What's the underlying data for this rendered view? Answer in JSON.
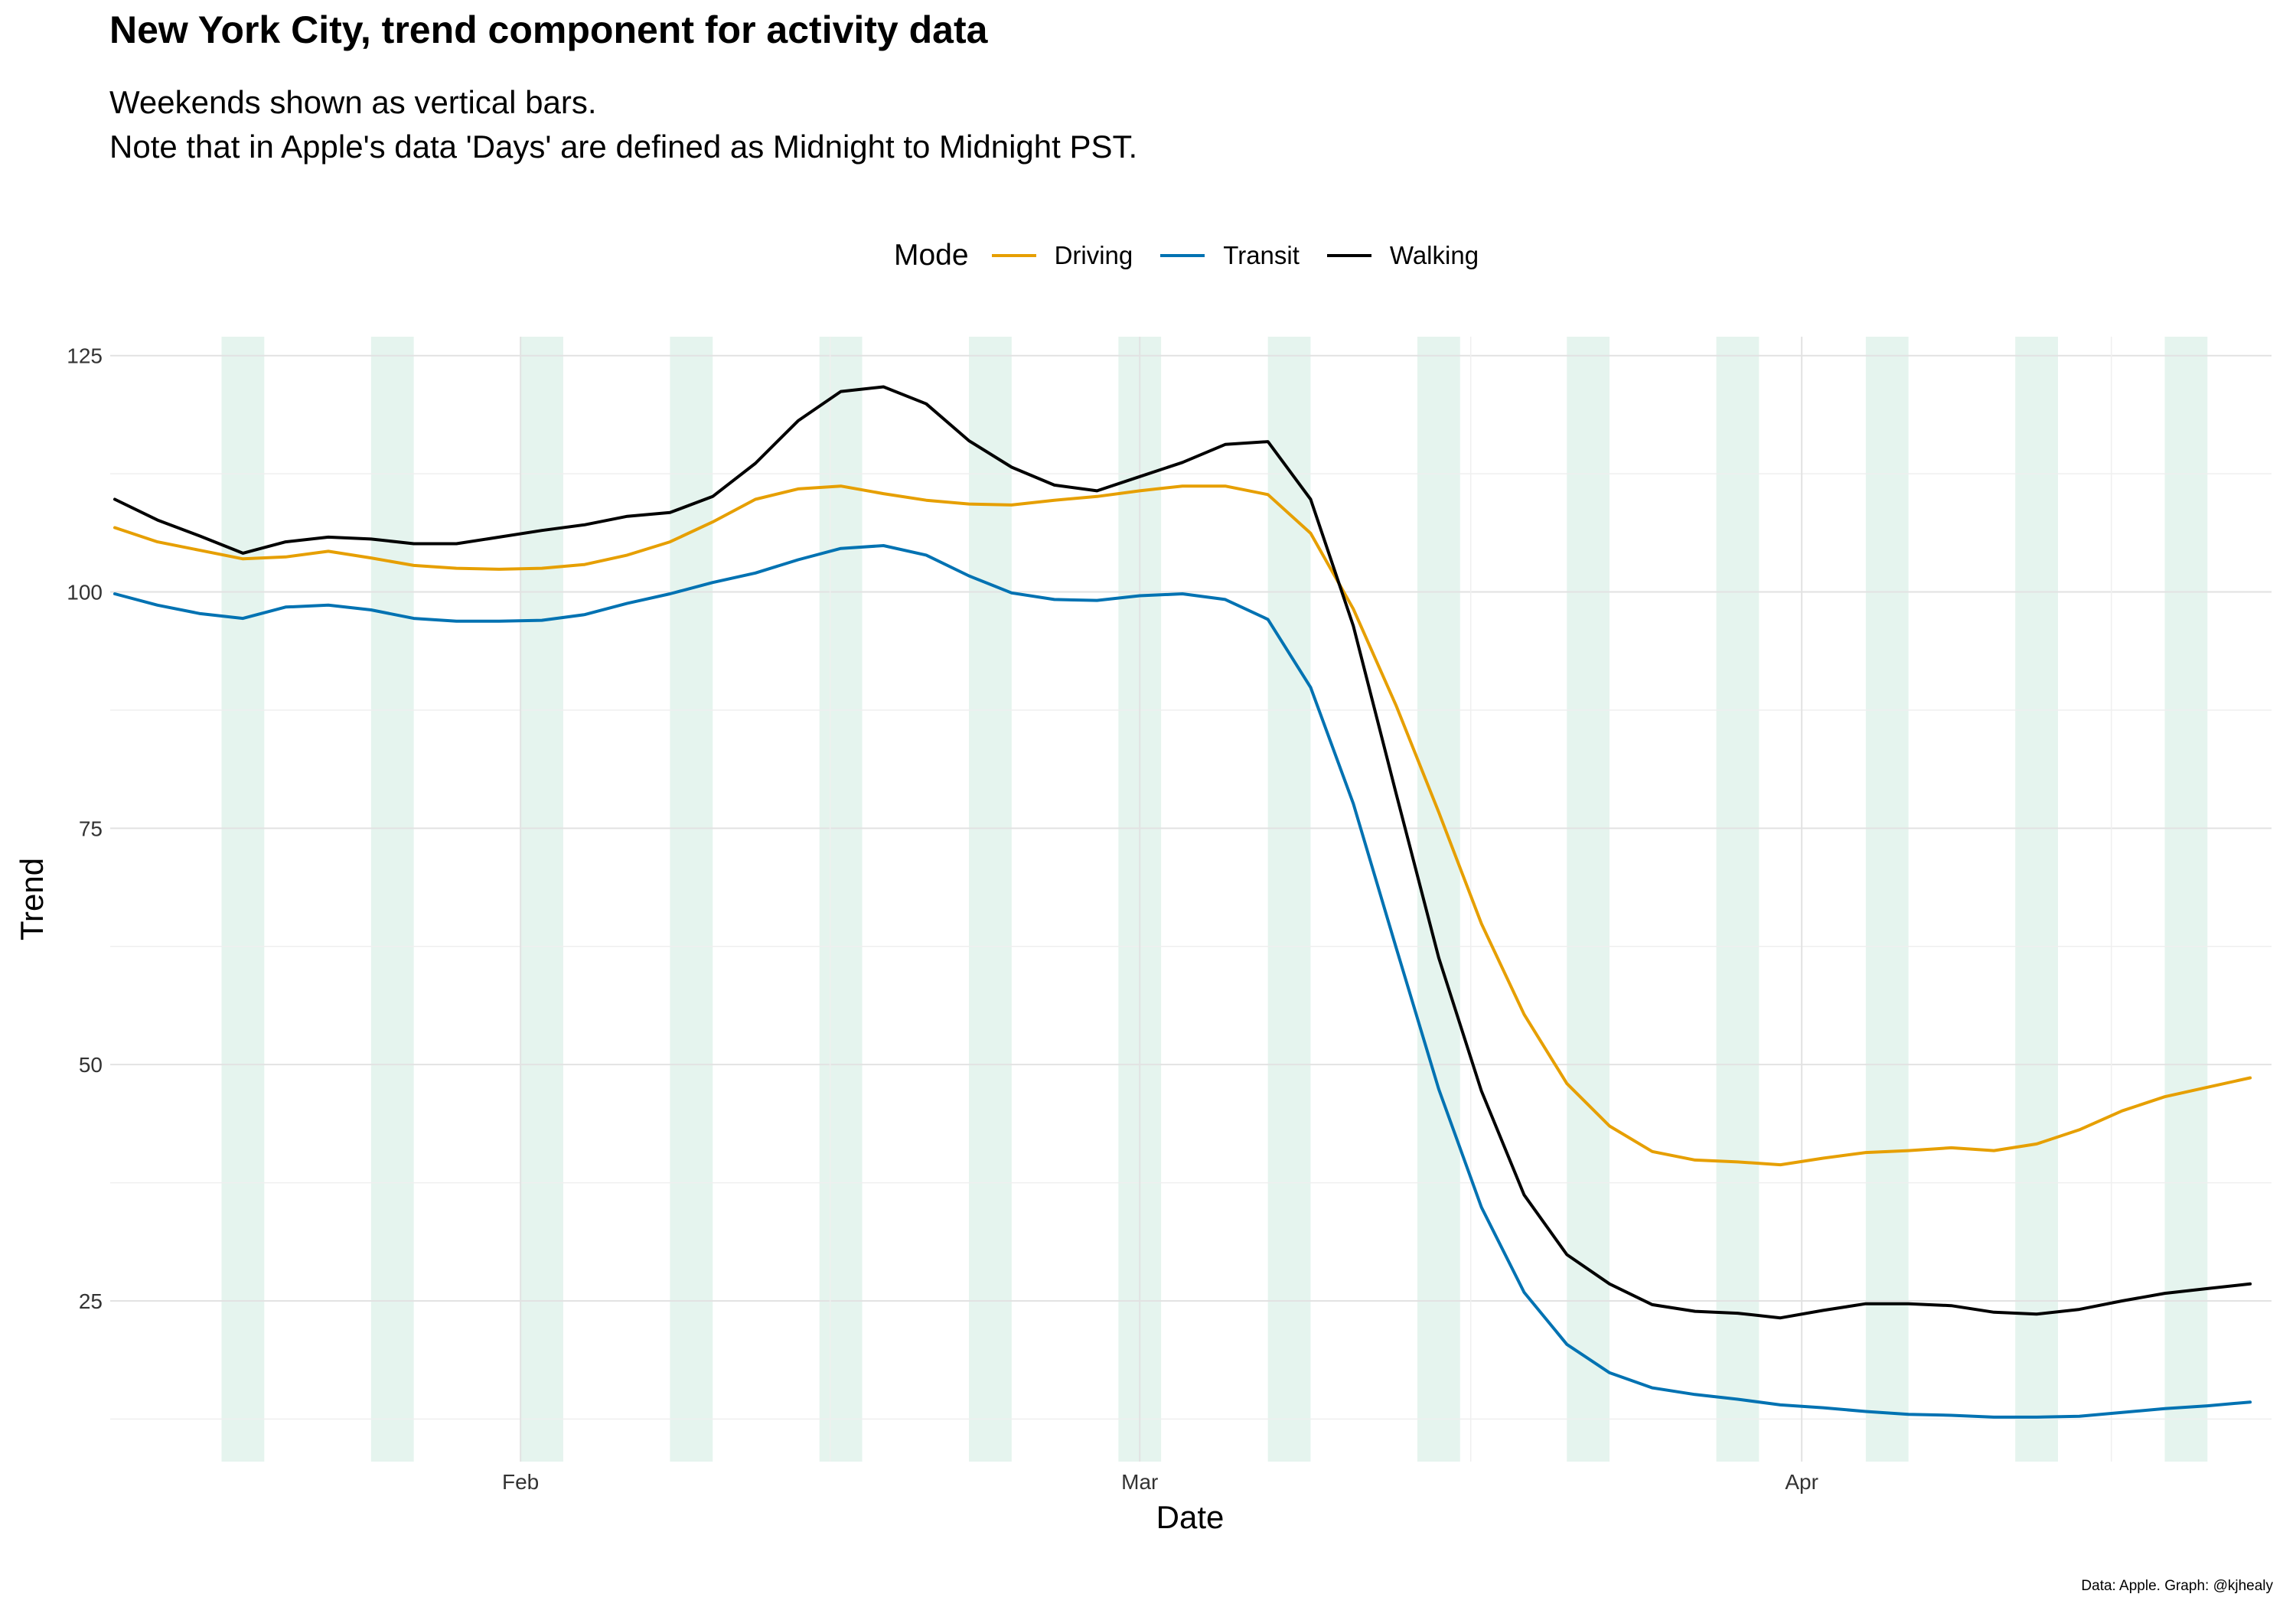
{
  "title": "New York City, trend component for activity data",
  "subtitle_lines": [
    "Weekends shown as vertical bars.",
    "Note that in Apple's data 'Days' are defined as Midnight to Midnight PST."
  ],
  "caption": "Data: Apple. Graph: @kjhealy",
  "legend": {
    "title": "Mode",
    "position": "top",
    "items": [
      {
        "name": "Driving",
        "color": "#E69F00"
      },
      {
        "name": "Transit",
        "color": "#0072B2"
      },
      {
        "name": "Walking",
        "color": "#000000"
      }
    ]
  },
  "chart_data": {
    "type": "line",
    "xlabel": "Date",
    "ylabel": "Trend",
    "x_start": "2020-01-13",
    "x_end": "2020-04-23",
    "x_ticks": [
      {
        "label": "Feb",
        "date": "2020-02-01"
      },
      {
        "label": "Mar",
        "date": "2020-03-01"
      },
      {
        "label": "Apr",
        "date": "2020-04-01"
      }
    ],
    "y_ticks": [
      25,
      50,
      75,
      100,
      125
    ],
    "ylim": [
      8,
      127
    ],
    "grid": true,
    "weekend_color": "#D7EEE5",
    "weekends": [
      [
        "2020-01-18",
        "2020-01-19"
      ],
      [
        "2020-01-25",
        "2020-01-26"
      ],
      [
        "2020-02-01",
        "2020-02-02"
      ],
      [
        "2020-02-08",
        "2020-02-09"
      ],
      [
        "2020-02-15",
        "2020-02-16"
      ],
      [
        "2020-02-22",
        "2020-02-23"
      ],
      [
        "2020-02-29",
        "2020-03-01"
      ],
      [
        "2020-03-07",
        "2020-03-08"
      ],
      [
        "2020-03-14",
        "2020-03-15"
      ],
      [
        "2020-03-21",
        "2020-03-22"
      ],
      [
        "2020-03-28",
        "2020-03-29"
      ],
      [
        "2020-04-04",
        "2020-04-05"
      ],
      [
        "2020-04-11",
        "2020-04-12"
      ],
      [
        "2020-04-18",
        "2020-04-19"
      ]
    ],
    "series": [
      {
        "name": "Driving",
        "color": "#E69F00",
        "points": [
          [
            "2020-01-13",
            106.8
          ],
          [
            "2020-01-15",
            105.3
          ],
          [
            "2020-01-17",
            104.4
          ],
          [
            "2020-01-19",
            103.5
          ],
          [
            "2020-01-21",
            103.7
          ],
          [
            "2020-01-23",
            104.3
          ],
          [
            "2020-01-25",
            103.6
          ],
          [
            "2020-01-27",
            102.8
          ],
          [
            "2020-01-29",
            102.5
          ],
          [
            "2020-01-31",
            102.4
          ],
          [
            "2020-02-02",
            102.5
          ],
          [
            "2020-02-04",
            102.9
          ],
          [
            "2020-02-06",
            103.9
          ],
          [
            "2020-02-08",
            105.3
          ],
          [
            "2020-02-10",
            107.4
          ],
          [
            "2020-02-12",
            109.8
          ],
          [
            "2020-02-14",
            110.9
          ],
          [
            "2020-02-16",
            111.2
          ],
          [
            "2020-02-18",
            110.4
          ],
          [
            "2020-02-20",
            109.7
          ],
          [
            "2020-02-22",
            109.3
          ],
          [
            "2020-02-24",
            109.2
          ],
          [
            "2020-02-26",
            109.7
          ],
          [
            "2020-02-28",
            110.1
          ],
          [
            "2020-03-01",
            110.7
          ],
          [
            "2020-03-03",
            111.2
          ],
          [
            "2020-03-05",
            111.2
          ],
          [
            "2020-03-07",
            110.3
          ],
          [
            "2020-03-09",
            106.2
          ],
          [
            "2020-03-11",
            98.2
          ],
          [
            "2020-03-13",
            88.0
          ],
          [
            "2020-03-15",
            76.7
          ],
          [
            "2020-03-17",
            64.9
          ],
          [
            "2020-03-19",
            55.3
          ],
          [
            "2020-03-21",
            48.0
          ],
          [
            "2020-03-23",
            43.5
          ],
          [
            "2020-03-25",
            40.8
          ],
          [
            "2020-03-27",
            39.9
          ],
          [
            "2020-03-29",
            39.7
          ],
          [
            "2020-03-31",
            39.4
          ],
          [
            "2020-04-02",
            40.1
          ],
          [
            "2020-04-04",
            40.7
          ],
          [
            "2020-04-06",
            40.9
          ],
          [
            "2020-04-08",
            41.2
          ],
          [
            "2020-04-10",
            40.9
          ],
          [
            "2020-04-12",
            41.6
          ],
          [
            "2020-04-14",
            43.1
          ],
          [
            "2020-04-16",
            45.1
          ],
          [
            "2020-04-18",
            46.6
          ],
          [
            "2020-04-20",
            47.6
          ],
          [
            "2020-04-22",
            48.6
          ]
        ]
      },
      {
        "name": "Transit",
        "color": "#0072B2",
        "points": [
          [
            "2020-01-13",
            99.8
          ],
          [
            "2020-01-15",
            98.6
          ],
          [
            "2020-01-17",
            97.7
          ],
          [
            "2020-01-19",
            97.2
          ],
          [
            "2020-01-21",
            98.4
          ],
          [
            "2020-01-23",
            98.6
          ],
          [
            "2020-01-25",
            98.1
          ],
          [
            "2020-01-27",
            97.2
          ],
          [
            "2020-01-29",
            96.9
          ],
          [
            "2020-01-31",
            96.9
          ],
          [
            "2020-02-02",
            97.0
          ],
          [
            "2020-02-04",
            97.6
          ],
          [
            "2020-02-06",
            98.8
          ],
          [
            "2020-02-08",
            99.8
          ],
          [
            "2020-02-10",
            101.0
          ],
          [
            "2020-02-12",
            102.0
          ],
          [
            "2020-02-14",
            103.4
          ],
          [
            "2020-02-16",
            104.6
          ],
          [
            "2020-02-18",
            104.9
          ],
          [
            "2020-02-20",
            103.9
          ],
          [
            "2020-02-22",
            101.7
          ],
          [
            "2020-02-24",
            99.9
          ],
          [
            "2020-02-26",
            99.2
          ],
          [
            "2020-02-28",
            99.1
          ],
          [
            "2020-03-01",
            99.6
          ],
          [
            "2020-03-03",
            99.8
          ],
          [
            "2020-03-05",
            99.2
          ],
          [
            "2020-03-07",
            97.1
          ],
          [
            "2020-03-09",
            89.9
          ],
          [
            "2020-03-11",
            77.6
          ],
          [
            "2020-03-13",
            62.4
          ],
          [
            "2020-03-15",
            47.4
          ],
          [
            "2020-03-17",
            34.9
          ],
          [
            "2020-03-19",
            25.9
          ],
          [
            "2020-03-21",
            20.4
          ],
          [
            "2020-03-23",
            17.4
          ],
          [
            "2020-03-25",
            15.8
          ],
          [
            "2020-03-27",
            15.1
          ],
          [
            "2020-03-29",
            14.6
          ],
          [
            "2020-03-31",
            14.0
          ],
          [
            "2020-04-02",
            13.7
          ],
          [
            "2020-04-04",
            13.3
          ],
          [
            "2020-04-06",
            13.0
          ],
          [
            "2020-04-08",
            12.9
          ],
          [
            "2020-04-10",
            12.7
          ],
          [
            "2020-04-12",
            12.7
          ],
          [
            "2020-04-14",
            12.8
          ],
          [
            "2020-04-16",
            13.2
          ],
          [
            "2020-04-18",
            13.6
          ],
          [
            "2020-04-20",
            13.9
          ],
          [
            "2020-04-22",
            14.3
          ]
        ]
      },
      {
        "name": "Walking",
        "color": "#000000",
        "points": [
          [
            "2020-01-13",
            109.8
          ],
          [
            "2020-01-15",
            107.6
          ],
          [
            "2020-01-17",
            105.9
          ],
          [
            "2020-01-19",
            104.1
          ],
          [
            "2020-01-21",
            105.3
          ],
          [
            "2020-01-23",
            105.8
          ],
          [
            "2020-01-25",
            105.6
          ],
          [
            "2020-01-27",
            105.1
          ],
          [
            "2020-01-29",
            105.1
          ],
          [
            "2020-01-31",
            105.8
          ],
          [
            "2020-02-02",
            106.5
          ],
          [
            "2020-02-04",
            107.1
          ],
          [
            "2020-02-06",
            108.0
          ],
          [
            "2020-02-08",
            108.4
          ],
          [
            "2020-02-10",
            110.1
          ],
          [
            "2020-02-12",
            113.6
          ],
          [
            "2020-02-14",
            118.1
          ],
          [
            "2020-02-16",
            121.2
          ],
          [
            "2020-02-18",
            121.7
          ],
          [
            "2020-02-20",
            119.9
          ],
          [
            "2020-02-22",
            116.0
          ],
          [
            "2020-02-24",
            113.2
          ],
          [
            "2020-02-26",
            111.3
          ],
          [
            "2020-02-28",
            110.7
          ],
          [
            "2020-03-01",
            112.2
          ],
          [
            "2020-03-03",
            113.7
          ],
          [
            "2020-03-05",
            115.6
          ],
          [
            "2020-03-07",
            115.9
          ],
          [
            "2020-03-09",
            109.8
          ],
          [
            "2020-03-11",
            96.4
          ],
          [
            "2020-03-13",
            78.7
          ],
          [
            "2020-03-15",
            61.3
          ],
          [
            "2020-03-17",
            47.2
          ],
          [
            "2020-03-19",
            36.2
          ],
          [
            "2020-03-21",
            29.9
          ],
          [
            "2020-03-23",
            26.8
          ],
          [
            "2020-03-25",
            24.6
          ],
          [
            "2020-03-27",
            23.9
          ],
          [
            "2020-03-29",
            23.7
          ],
          [
            "2020-03-31",
            23.2
          ],
          [
            "2020-04-02",
            24.0
          ],
          [
            "2020-04-04",
            24.7
          ],
          [
            "2020-04-06",
            24.7
          ],
          [
            "2020-04-08",
            24.5
          ],
          [
            "2020-04-10",
            23.8
          ],
          [
            "2020-04-12",
            23.6
          ],
          [
            "2020-04-14",
            24.1
          ],
          [
            "2020-04-16",
            25.0
          ],
          [
            "2020-04-18",
            25.8
          ],
          [
            "2020-04-20",
            26.3
          ],
          [
            "2020-04-22",
            26.8
          ]
        ]
      }
    ]
  }
}
